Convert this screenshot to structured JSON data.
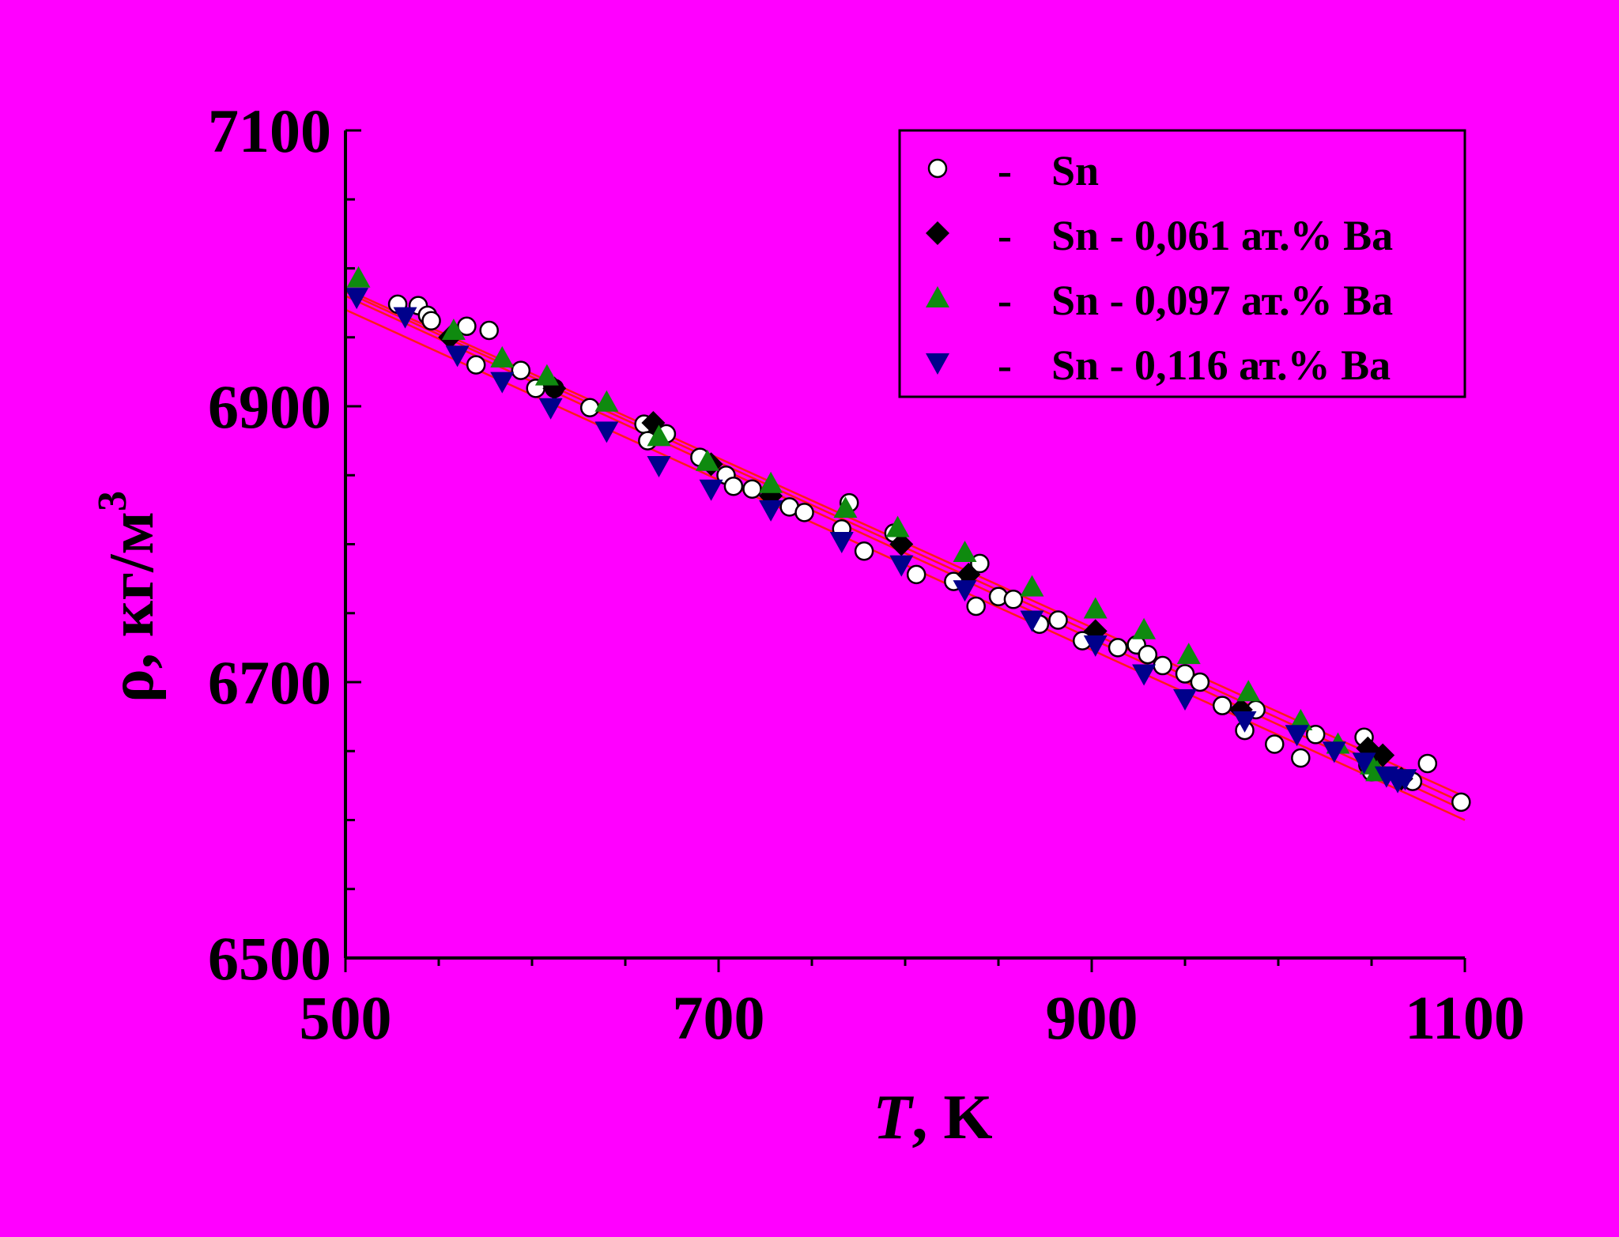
{
  "chart_data": {
    "type": "scatter",
    "background": "#ff00ff",
    "xlabel_italic": "T",
    "xlabel_rest": ", K",
    "ylabel_main": "ρ, кг/м",
    "ylabel_sup": "3",
    "xlim": [
      500,
      1100
    ],
    "ylim": [
      6500,
      7100
    ],
    "xticks": [
      500,
      700,
      900,
      1100
    ],
    "yticks": [
      6500,
      6700,
      6900,
      7100
    ],
    "x_minor_step": 50,
    "y_minor_step": 50,
    "grid": false,
    "legend_position": "top-right",
    "legend_dash": "-",
    "fit_line_color": "#ff1a1a",
    "fits": [
      {
        "x": [
          500,
          1100
        ],
        "y": [
          6985,
          6617
        ]
      },
      {
        "x": [
          500,
          1100
        ],
        "y": [
          6983,
          6612
        ]
      },
      {
        "x": [
          500,
          1100
        ],
        "y": [
          6980,
          6607
        ]
      },
      {
        "x": [
          500,
          1100
        ],
        "y": [
          6970,
          6600
        ]
      }
    ],
    "series": [
      {
        "name": "Sn",
        "marker": "circle",
        "fill": "#ffffff",
        "points": [
          [
            528,
            6974
          ],
          [
            539,
            6973
          ],
          [
            544,
            6966
          ],
          [
            546,
            6962
          ],
          [
            565,
            6958
          ],
          [
            570,
            6930
          ],
          [
            577,
            6955
          ],
          [
            594,
            6926
          ],
          [
            602,
            6913
          ],
          [
            612,
            6913
          ],
          [
            631,
            6899
          ],
          [
            660,
            6887
          ],
          [
            662,
            6875
          ],
          [
            672,
            6880
          ],
          [
            690,
            6863
          ],
          [
            704,
            6850
          ],
          [
            708,
            6842
          ],
          [
            718,
            6840
          ],
          [
            738,
            6827
          ],
          [
            746,
            6823
          ],
          [
            766,
            6811
          ],
          [
            770,
            6830
          ],
          [
            778,
            6795
          ],
          [
            794,
            6808
          ],
          [
            806,
            6778
          ],
          [
            826,
            6773
          ],
          [
            838,
            6755
          ],
          [
            840,
            6786
          ],
          [
            850,
            6762
          ],
          [
            858,
            6760
          ],
          [
            872,
            6742
          ],
          [
            882,
            6745
          ],
          [
            895,
            6730
          ],
          [
            914,
            6725
          ],
          [
            924,
            6727
          ],
          [
            930,
            6720
          ],
          [
            938,
            6712
          ],
          [
            950,
            6706
          ],
          [
            958,
            6700
          ],
          [
            970,
            6683
          ],
          [
            982,
            6665
          ],
          [
            988,
            6680
          ],
          [
            998,
            6655
          ],
          [
            1012,
            6645
          ],
          [
            1020,
            6662
          ],
          [
            1046,
            6660
          ],
          [
            1048,
            6640
          ],
          [
            1050,
            6635
          ],
          [
            1072,
            6628
          ],
          [
            1080,
            6641
          ],
          [
            1098,
            6613
          ]
        ]
      },
      {
        "name": "Sn - 0,061 ат.% Ba",
        "marker": "diamond",
        "fill": "#000000",
        "points": [
          [
            556,
            6950
          ],
          [
            612,
            6913
          ],
          [
            665,
            6888
          ],
          [
            696,
            6858
          ],
          [
            728,
            6835
          ],
          [
            798,
            6800
          ],
          [
            834,
            6778
          ],
          [
            902,
            6737
          ],
          [
            980,
            6680
          ],
          [
            1048,
            6652
          ],
          [
            1056,
            6647
          ],
          [
            1066,
            6630
          ]
        ]
      },
      {
        "name": "Sn - 0,097 ат.% Ba",
        "marker": "triangle-up",
        "fill": "#0f8a0f",
        "points": [
          [
            507,
            6993
          ],
          [
            558,
            6955
          ],
          [
            584,
            6935
          ],
          [
            608,
            6922
          ],
          [
            640,
            6903
          ],
          [
            668,
            6878
          ],
          [
            694,
            6860
          ],
          [
            728,
            6844
          ],
          [
            768,
            6826
          ],
          [
            796,
            6812
          ],
          [
            832,
            6794
          ],
          [
            868,
            6769
          ],
          [
            902,
            6753
          ],
          [
            928,
            6738
          ],
          [
            952,
            6720
          ],
          [
            984,
            6693
          ],
          [
            1012,
            6672
          ],
          [
            1032,
            6655
          ],
          [
            1050,
            6640
          ],
          [
            1053,
            6635
          ]
        ]
      },
      {
        "name": "Sn - 0,116 ат.% Ba",
        "marker": "triangle-down",
        "fill": "#00008b",
        "points": [
          [
            506,
            6979
          ],
          [
            532,
            6965
          ],
          [
            560,
            6937
          ],
          [
            584,
            6918
          ],
          [
            610,
            6899
          ],
          [
            640,
            6882
          ],
          [
            668,
            6857
          ],
          [
            696,
            6840
          ],
          [
            728,
            6825
          ],
          [
            766,
            6802
          ],
          [
            798,
            6785
          ],
          [
            832,
            6767
          ],
          [
            868,
            6745
          ],
          [
            902,
            6727
          ],
          [
            928,
            6706
          ],
          [
            950,
            6688
          ],
          [
            982,
            6672
          ],
          [
            1010,
            6662
          ],
          [
            1030,
            6650
          ],
          [
            1046,
            6642
          ],
          [
            1058,
            6632
          ],
          [
            1064,
            6628
          ],
          [
            1068,
            6630
          ]
        ]
      }
    ]
  }
}
